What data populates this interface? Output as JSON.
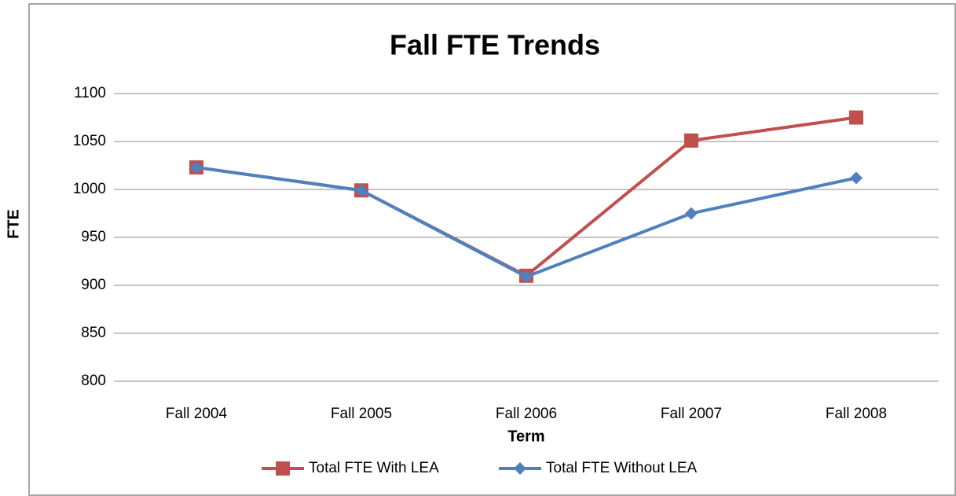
{
  "chart_data": {
    "type": "line",
    "title": "Fall FTE Trends",
    "x_label": "Term",
    "y_label": "FTE",
    "categories": [
      "Fall 2004",
      "Fall 2005",
      "Fall 2006",
      "Fall 2007",
      "Fall 2008"
    ],
    "series": [
      {
        "name": "Total FTE With LEA",
        "color": "#c0504d",
        "marker": "square",
        "values": [
          1023,
          999,
          910,
          1051,
          1075
        ]
      },
      {
        "name": "Total FTE Without LEA",
        "color": "#4f81bd",
        "marker": "diamond",
        "values": [
          1023,
          999,
          909,
          975,
          1012
        ]
      }
    ],
    "ylim": [
      800,
      1100
    ],
    "yticks": [
      800,
      850,
      900,
      950,
      1000,
      1050,
      1100
    ],
    "grid": true,
    "legend": "bottom"
  }
}
